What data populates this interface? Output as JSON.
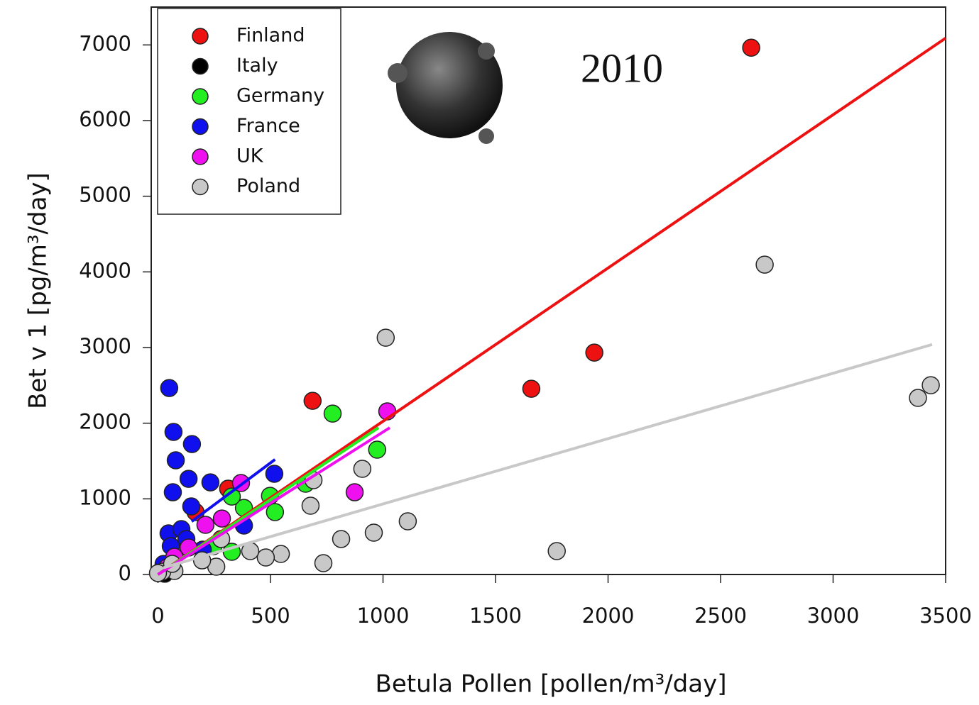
{
  "chart_data": {
    "type": "scatter",
    "annotation": "2010",
    "x_label": "Betula Pollen [pollen/m³/day]",
    "y_label": "Bet v 1 [pg/m³/day]",
    "xlim": [
      -30,
      3500
    ],
    "ylim": [
      0,
      7500
    ],
    "xticks": [
      0,
      500,
      1000,
      1500,
      2000,
      2500,
      3000,
      3500
    ],
    "yticks": [
      0,
      1000,
      2000,
      3000,
      4000,
      5000,
      6000,
      7000
    ],
    "legend": "upper left",
    "series": [
      {
        "name": "Finland",
        "color": "#ee1111",
        "x": [
          2636,
          1659,
          1939,
          687,
          312,
          167,
          20
        ],
        "values": [
          6963,
          2455,
          2933,
          2296,
          1134,
          825,
          50
        ],
        "fit_x": [
          0,
          3500
        ],
        "fit_y": [
          0,
          7090
        ]
      },
      {
        "name": "Italy",
        "color": "#000000",
        "x": [
          5,
          30,
          15
        ],
        "values": [
          20,
          10,
          40
        ]
      },
      {
        "name": "Germany",
        "color": "#22ee22",
        "x": [
          776,
          974,
          498,
          520,
          382,
          328,
          328,
          656,
          246,
          30
        ],
        "values": [
          2127,
          1650,
          1040,
          825,
          880,
          1030,
          300,
          1200,
          375,
          60
        ],
        "fit_x": [
          0,
          980
        ],
        "fit_y": [
          0,
          1940
        ]
      },
      {
        "name": "France",
        "color": "#1010ee",
        "x": [
          50,
          69,
          79,
          66,
          151,
          136,
          148,
          233,
          517,
          382,
          47,
          104,
          57,
          126,
          199,
          25
        ],
        "values": [
          2465,
          1884,
          1509,
          1087,
          1724,
          1265,
          900,
          1218,
          1331,
          647,
          544,
          600,
          375,
          469,
          328,
          140
        ],
        "fit_x": [
          150,
          520
        ],
        "fit_y": [
          700,
          1520
        ]
      },
      {
        "name": "UK",
        "color": "#ee10ee",
        "x": [
          1019,
          874,
          369,
          284,
          211,
          136,
          73,
          41
        ],
        "values": [
          2156,
          1087,
          1209,
          740,
          656,
          356,
          234,
          94
        ],
        "fit_x": [
          0,
          1030
        ],
        "fit_y": [
          0,
          1940
        ]
      },
      {
        "name": "Poland",
        "color": "#c8c8c8",
        "x": [
          2696,
          1012,
          3377,
          3434,
          908,
          691,
          678,
          1110,
          959,
          814,
          1772,
          735,
          546,
          479,
          410,
          281,
          259,
          196,
          73,
          19,
          0,
          63
        ],
        "values": [
          4096,
          3130,
          2334,
          2502,
          1397,
          1247,
          909,
          703,
          553,
          469,
          309,
          150,
          272,
          225,
          309,
          469,
          103,
          187,
          47,
          37,
          19,
          141
        ],
        "fit_x": [
          25,
          3440
        ],
        "fit_y": [
          90,
          3040
        ]
      }
    ]
  }
}
